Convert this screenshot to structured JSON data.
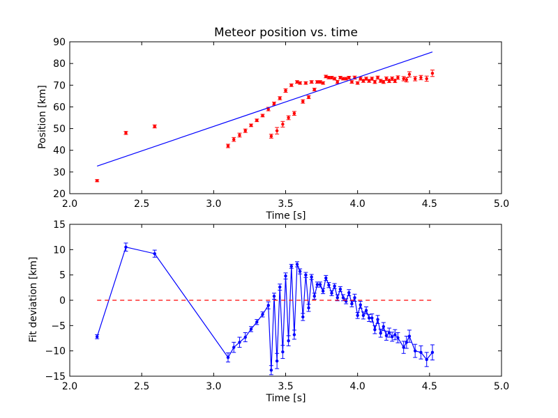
{
  "chart_data": [
    {
      "type": "scatter",
      "title": "Meteor position vs. time",
      "xlabel": "Time [s]",
      "ylabel": "Position [km]",
      "xlim": [
        2.0,
        5.0
      ],
      "ylim": [
        20,
        90
      ],
      "xticks": [
        "2.0",
        "2.5",
        "3.0",
        "3.5",
        "4.0",
        "4.5",
        "5.0"
      ],
      "yticks": [
        "20",
        "30",
        "40",
        "50",
        "60",
        "70",
        "80",
        "90"
      ],
      "grid": false,
      "series": [
        {
          "style": "points-with-errorbars",
          "color": "#ff0000",
          "x": [
            2.19,
            2.39,
            2.59,
            3.1,
            3.14,
            3.18,
            3.22,
            3.26,
            3.3,
            3.34,
            3.38,
            3.4,
            3.42,
            3.44,
            3.46,
            3.48,
            3.5,
            3.52,
            3.54,
            3.56,
            3.58,
            3.6,
            3.62,
            3.64,
            3.66,
            3.68,
            3.7,
            3.72,
            3.74,
            3.76,
            3.78,
            3.8,
            3.82,
            3.84,
            3.86,
            3.88,
            3.9,
            3.92,
            3.94,
            3.96,
            3.98,
            4.0,
            4.02,
            4.04,
            4.06,
            4.08,
            4.1,
            4.12,
            4.14,
            4.16,
            4.18,
            4.2,
            4.22,
            4.24,
            4.26,
            4.28,
            4.32,
            4.34,
            4.36,
            4.4,
            4.44,
            4.48,
            4.52
          ],
          "y": [
            26,
            48,
            51,
            42,
            45,
            47,
            49,
            51.5,
            53.8,
            56,
            59,
            46.5,
            61.5,
            49,
            64,
            52,
            67.5,
            55,
            70,
            57,
            71.5,
            71,
            62.5,
            71,
            64.5,
            71.5,
            68,
            71.5,
            71.5,
            71,
            74,
            73.5,
            73.5,
            73,
            71.5,
            73.5,
            73,
            73,
            73.5,
            71.5,
            73.5,
            71,
            73,
            72,
            73,
            72,
            73,
            71.5,
            73.5,
            72,
            71.5,
            73,
            72,
            73,
            72,
            73.5,
            73,
            72.5,
            75,
            73,
            73.5,
            73,
            75.5
          ],
          "yerr": [
            0.5,
            0.7,
            0.7,
            0.8,
            0.9,
            0.9,
            0.8,
            0.6,
            0.6,
            0.6,
            0.8,
            0.9,
            0.7,
            1.5,
            0.7,
            1.3,
            0.8,
            0.9,
            0.6,
            0.9,
            0.6,
            0.6,
            0.8,
            0.6,
            0.7,
            0.6,
            0.6,
            0.6,
            0.6,
            0.6,
            0.6,
            0.6,
            0.6,
            0.6,
            0.7,
            0.6,
            0.6,
            0.6,
            0.6,
            0.6,
            0.7,
            0.6,
            0.7,
            0.7,
            0.7,
            0.7,
            0.7,
            0.7,
            0.7,
            0.7,
            0.7,
            0.8,
            0.8,
            0.8,
            0.8,
            0.8,
            1.0,
            1.0,
            1.2,
            1.0,
            1.0,
            1.2,
            1.5
          ]
        },
        {
          "style": "line",
          "color": "#0000ff",
          "x": [
            2.19,
            4.52
          ],
          "y": [
            32.7,
            85.3
          ]
        }
      ]
    },
    {
      "type": "line",
      "title": "",
      "xlabel": "Time [s]",
      "ylabel": "Fit deviation [km]",
      "xlim": [
        2.0,
        5.0
      ],
      "ylim": [
        -15,
        15
      ],
      "xticks": [
        "2.0",
        "2.5",
        "3.0",
        "3.5",
        "4.0",
        "4.5",
        "5.0"
      ],
      "yticks": [
        "−15",
        "−10",
        "−5",
        "0",
        "5",
        "10",
        "15"
      ],
      "grid": false,
      "series": [
        {
          "style": "line-points-with-errorbars",
          "color": "#0000ff",
          "x": [
            2.19,
            2.39,
            2.59,
            3.1,
            3.14,
            3.18,
            3.22,
            3.26,
            3.3,
            3.34,
            3.38,
            3.4,
            3.42,
            3.44,
            3.46,
            3.48,
            3.5,
            3.52,
            3.54,
            3.56,
            3.58,
            3.6,
            3.62,
            3.64,
            3.66,
            3.68,
            3.7,
            3.72,
            3.74,
            3.76,
            3.78,
            3.8,
            3.82,
            3.84,
            3.86,
            3.88,
            3.9,
            3.92,
            3.94,
            3.96,
            3.98,
            4.0,
            4.02,
            4.04,
            4.06,
            4.08,
            4.1,
            4.12,
            4.14,
            4.16,
            4.18,
            4.2,
            4.22,
            4.24,
            4.26,
            4.28,
            4.32,
            4.34,
            4.36,
            4.4,
            4.44,
            4.48,
            4.52
          ],
          "y": [
            -7.2,
            10.5,
            9.2,
            -11.3,
            -9.3,
            -8.3,
            -7.3,
            -5.7,
            -4.3,
            -2.8,
            -1.0,
            -13.8,
            0.8,
            -12.0,
            2.6,
            -10.2,
            4.8,
            -8.0,
            6.7,
            -6.8,
            7.1,
            5.7,
            -3.3,
            5.0,
            -1.5,
            4.6,
            0.8,
            3.1,
            3.1,
            1.8,
            4.4,
            3.0,
            1.4,
            2.8,
            0.5,
            2.2,
            0.5,
            -0.2,
            1.5,
            -0.7,
            0.5,
            -3.0,
            -0.9,
            -3.0,
            -2.0,
            -3.5,
            -3.5,
            -5.8,
            -3.8,
            -6.5,
            -5.2,
            -7.0,
            -6.4,
            -7.2,
            -6.8,
            -7.4,
            -9.3,
            -8.3,
            -7.1,
            -10.0,
            -10.3,
            -11.7,
            -10.3
          ],
          "yerr": [
            0.4,
            0.8,
            0.7,
            0.9,
            1.0,
            1.0,
            0.9,
            0.5,
            0.5,
            0.5,
            0.7,
            0.9,
            0.6,
            1.5,
            0.6,
            1.3,
            0.6,
            1.0,
            0.4,
            0.9,
            0.5,
            0.5,
            0.7,
            0.5,
            0.7,
            0.5,
            0.6,
            0.5,
            0.5,
            0.5,
            0.5,
            0.5,
            0.5,
            0.5,
            0.6,
            0.5,
            0.6,
            0.5,
            0.6,
            0.6,
            0.7,
            0.6,
            0.7,
            0.7,
            0.7,
            0.7,
            0.8,
            0.8,
            0.8,
            0.8,
            0.8,
            0.9,
            0.9,
            0.9,
            1.0,
            1.0,
            1.2,
            1.2,
            1.2,
            1.3,
            1.3,
            1.4,
            1.5
          ]
        },
        {
          "style": "dashed-line",
          "color": "#ff0000",
          "x": [
            2.19,
            4.52
          ],
          "y": [
            0,
            0
          ]
        }
      ]
    }
  ]
}
